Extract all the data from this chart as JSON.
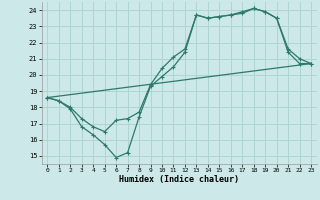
{
  "xlabel": "Humidex (Indice chaleur)",
  "bg_color": "#cce8e8",
  "grid_color": "#aed4d4",
  "line_color": "#2d7a6a",
  "xlim": [
    -0.5,
    23.5
  ],
  "ylim": [
    14.5,
    24.5
  ],
  "xticks": [
    0,
    1,
    2,
    3,
    4,
    5,
    6,
    7,
    8,
    9,
    10,
    11,
    12,
    13,
    14,
    15,
    16,
    17,
    18,
    19,
    20,
    21,
    22,
    23
  ],
  "yticks": [
    15,
    16,
    17,
    18,
    19,
    20,
    21,
    22,
    23,
    24
  ],
  "line1_x": [
    0,
    1,
    2,
    3,
    4,
    5,
    6,
    7,
    8,
    9,
    10,
    11,
    12,
    13,
    14,
    15,
    16,
    17,
    18,
    19,
    20,
    21,
    22,
    23
  ],
  "line1_y": [
    18.6,
    18.4,
    17.9,
    16.8,
    16.3,
    15.7,
    14.9,
    15.2,
    17.4,
    19.3,
    19.9,
    20.5,
    21.4,
    23.7,
    23.5,
    23.6,
    23.7,
    23.9,
    24.1,
    23.9,
    23.5,
    21.4,
    20.7,
    20.7
  ],
  "line2_x": [
    0,
    1,
    2,
    3,
    4,
    5,
    6,
    7,
    8,
    9,
    10,
    11,
    12,
    13,
    14,
    15,
    16,
    17,
    18,
    19,
    20,
    21,
    22,
    23
  ],
  "line2_y": [
    18.6,
    18.4,
    18.0,
    17.3,
    16.8,
    16.5,
    17.2,
    17.3,
    17.7,
    19.4,
    20.4,
    21.1,
    21.6,
    23.7,
    23.5,
    23.6,
    23.7,
    23.8,
    24.1,
    23.9,
    23.5,
    21.6,
    21.0,
    20.7
  ],
  "line3_x": [
    0,
    23
  ],
  "line3_y": [
    18.6,
    20.7
  ]
}
